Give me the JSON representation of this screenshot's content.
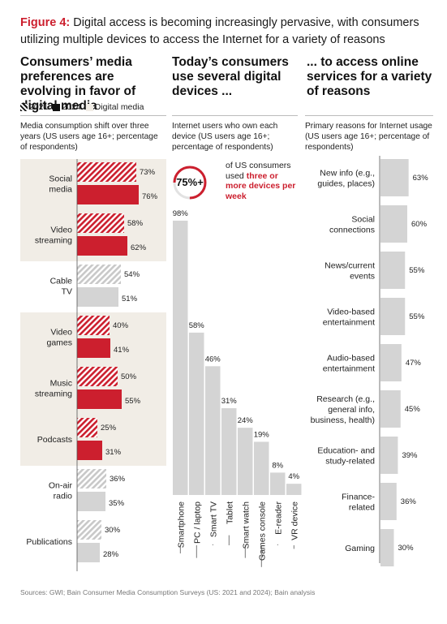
{
  "figure": {
    "label": "Figure 4:",
    "text": "Digital access is becoming increasingly pervasive, with consumers utilizing multiple devices to access the Internet for a variety of reasons"
  },
  "colors": {
    "red": "#cc1f2e",
    "grey": "#d4d4d4",
    "panel": "#f1ede6"
  },
  "left": {
    "heading": "Consumers’ media preferences are evolving in favor of digital media",
    "legend": {
      "y2021": "2021",
      "y2024": "2024",
      "digital": "Digital media"
    },
    "subtitle": "Media consumption shift over three years (US users age 16+; percentage of respondents)"
  },
  "middle": {
    "heading": "Today’s consumers use several digital devices ...",
    "subtitle": "Internet users who own each device (US users age 16+; percentage of respondents)",
    "callout_value": "75%+",
    "callout_text": "of US consumers used",
    "callout_highlight": "three or more devices per week"
  },
  "right": {
    "heading": "... to access online services for a variety of reasons",
    "subtitle": "Primary reasons for Internet usage (US users age 16+; percentage of respondents)"
  },
  "source": "Sources: GWI; Bain Consumer Media Consumption Surveys (US: 2021 and 2024); Bain analysis",
  "chart_data": [
    {
      "type": "bar",
      "title": "Media consumption shift over three years",
      "categories": [
        "Social media",
        "Video streaming",
        "Cable TV",
        "Video games",
        "Music streaming",
        "Podcasts",
        "On-air radio",
        "Publications"
      ],
      "digital": [
        true,
        true,
        false,
        true,
        true,
        true,
        false,
        false
      ],
      "series": [
        {
          "name": "2021",
          "values": [
            73,
            58,
            54,
            40,
            50,
            25,
            36,
            30
          ]
        },
        {
          "name": "2024",
          "values": [
            76,
            62,
            51,
            41,
            55,
            31,
            35,
            28
          ]
        }
      ],
      "unit": "%"
    },
    {
      "type": "bar",
      "title": "Internet users who own each device",
      "categories": [
        "Smartphone",
        "PC / laptop",
        "Smart TV",
        "Tablet",
        "Smart watch",
        "Games console",
        "E-reader",
        "VR device"
      ],
      "values": [
        98,
        58,
        46,
        31,
        24,
        19,
        8,
        4
      ],
      "unit": "%"
    },
    {
      "type": "bar",
      "title": "Primary reasons for Internet usage",
      "categories": [
        "New info (e.g., guides, places)",
        "Social connections",
        "News/current events",
        "Video-based entertainment",
        "Audio-based entertainment",
        "Research (e.g., general info, business, health)",
        "Education- and study-related",
        "Finance-related",
        "Gaming"
      ],
      "values": [
        63,
        60,
        55,
        55,
        47,
        45,
        39,
        36,
        30
      ],
      "unit": "%"
    }
  ]
}
